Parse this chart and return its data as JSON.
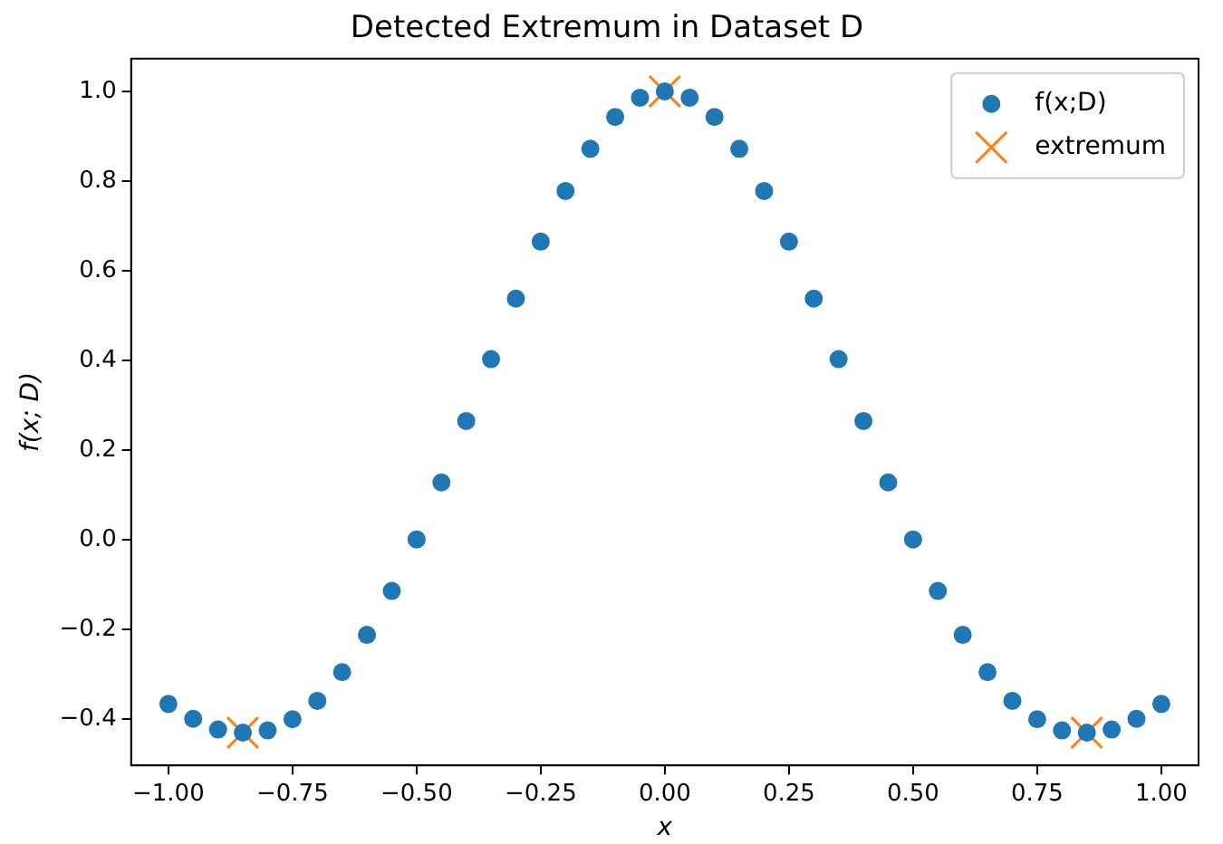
{
  "chart_data": {
    "type": "scatter",
    "title": "Detected Extremum in Dataset D",
    "xlabel": "x",
    "ylabel": "f(x; D)",
    "xlim": [
      -1.075,
      1.075
    ],
    "xticks": [
      {
        "value": -1,
        "label": "−1.00"
      },
      {
        "value": -0.75,
        "label": "−0.75"
      },
      {
        "value": -0.5,
        "label": "−0.50"
      },
      {
        "value": -0.25,
        "label": "−0.25"
      },
      {
        "value": 0,
        "label": "0.00"
      },
      {
        "value": 0.25,
        "label": "0.25"
      },
      {
        "value": 0.5,
        "label": "0.50"
      },
      {
        "value": 0.75,
        "label": "0.75"
      },
      {
        "value": 1,
        "label": "1.00"
      }
    ],
    "ylim": [
      -0.503,
      1.073
    ],
    "yticks": [
      {
        "value": -0.4,
        "label": "−0.4"
      },
      {
        "value": -0.2,
        "label": "−0.2"
      },
      {
        "value": 0,
        "label": "0.0"
      },
      {
        "value": 0.2,
        "label": "0.2"
      },
      {
        "value": 0.4,
        "label": "0.4"
      },
      {
        "value": 0.6,
        "label": "0.6"
      },
      {
        "value": 0.8,
        "label": "0.8"
      },
      {
        "value": 1,
        "label": "1.0"
      }
    ],
    "grid": false,
    "legend": "top right",
    "series": [
      {
        "name": "f(x;D)",
        "color": "#1f77b4",
        "marker": "circle",
        "x": [
          -1,
          -0.95,
          -0.9,
          -0.85,
          -0.8,
          -0.75,
          -0.7,
          -0.65,
          -0.6,
          -0.55,
          -0.5,
          -0.45,
          -0.4,
          -0.35,
          -0.3,
          -0.25,
          -0.2,
          -0.15,
          -0.1,
          -0.05,
          0,
          0.05,
          0.1,
          0.15,
          0.2,
          0.25,
          0.3,
          0.35,
          0.4,
          0.45,
          0.5,
          0.55,
          0.6,
          0.65,
          0.7,
          0.75,
          0.8,
          0.85,
          0.9,
          0.95,
          1
        ],
        "values": [
          -0.366,
          -0.399,
          -0.423,
          -0.43,
          -0.425,
          -0.4,
          -0.359,
          -0.295,
          -0.212,
          -0.114,
          0.001,
          0.128,
          0.265,
          0.403,
          0.538,
          0.665,
          0.778,
          0.872,
          0.943,
          0.986,
          1.0,
          0.986,
          0.943,
          0.872,
          0.778,
          0.665,
          0.538,
          0.403,
          0.265,
          0.128,
          0.001,
          -0.114,
          -0.212,
          -0.295,
          -0.359,
          -0.4,
          -0.425,
          -0.43,
          -0.423,
          -0.399,
          -0.366
        ]
      },
      {
        "name": "extremum",
        "color": "#ff7f0e",
        "marker": "cross",
        "x": [
          -0.85,
          0,
          0.85
        ],
        "values": [
          -0.43,
          1.0,
          -0.43
        ]
      }
    ]
  }
}
